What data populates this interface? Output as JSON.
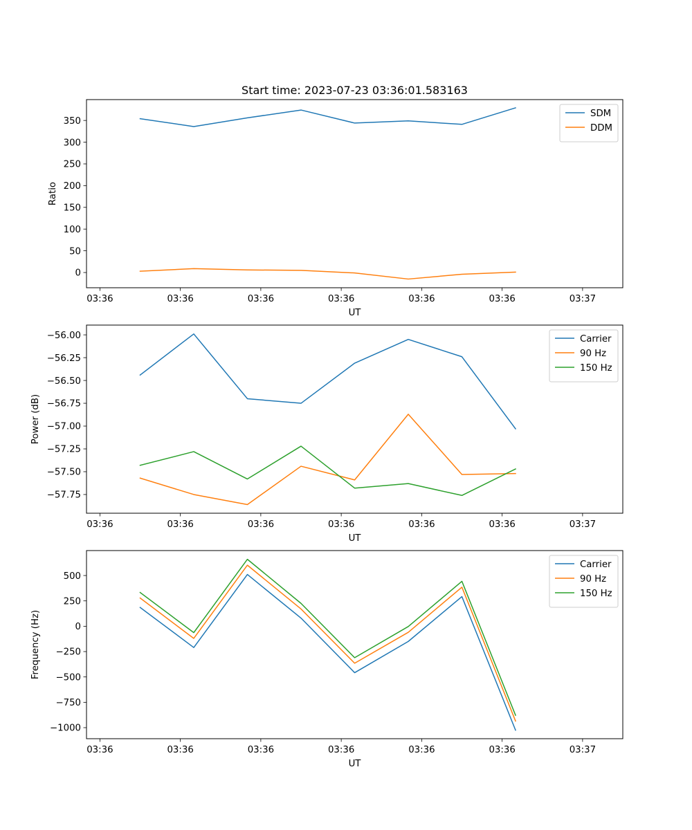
{
  "title": "Start time: 2023-07-23 03:36:01.583163",
  "colors": {
    "blue": "#1f77b4",
    "orange": "#ff7f0e",
    "green": "#2ca02c"
  },
  "chart_data": [
    {
      "type": "line",
      "xlabel": "UT",
      "ylabel": "Ratio",
      "x": [
        1,
        2,
        3,
        4,
        5,
        6,
        7,
        8
      ],
      "xlim": [
        0,
        10
      ],
      "x_ticks": [
        0.25,
        1.75,
        3.25,
        4.75,
        6.25,
        7.75,
        9.25
      ],
      "x_tick_labels": [
        "03:36",
        "03:36",
        "03:36",
        "03:36",
        "03:36",
        "03:36",
        "03:37"
      ],
      "ylim": [
        -35,
        398
      ],
      "y_ticks": [
        0,
        50,
        100,
        150,
        200,
        250,
        300,
        350
      ],
      "y_tick_labels": [
        "0",
        "50",
        "100",
        "150",
        "200",
        "250",
        "300",
        "350"
      ],
      "legend": "top-right",
      "series": [
        {
          "name": "SDM",
          "color": "#1f77b4",
          "values": [
            354,
            336,
            356,
            374,
            344,
            349,
            341,
            379
          ]
        },
        {
          "name": "DDM",
          "color": "#ff7f0e",
          "values": [
            3,
            9,
            6,
            5,
            -1,
            -15,
            -4,
            1
          ]
        }
      ]
    },
    {
      "type": "line",
      "xlabel": "UT",
      "ylabel": "Power (dB)",
      "x": [
        1,
        2,
        3,
        4,
        5,
        6,
        7,
        8
      ],
      "xlim": [
        0,
        10
      ],
      "x_ticks": [
        0.25,
        1.75,
        3.25,
        4.75,
        6.25,
        7.75,
        9.25
      ],
      "x_tick_labels": [
        "03:36",
        "03:36",
        "03:36",
        "03:36",
        "03:36",
        "03:36",
        "03:37"
      ],
      "ylim": [
        -57.955,
        -55.893
      ],
      "y_ticks": [
        -57.75,
        -57.5,
        -57.25,
        -57.0,
        -56.75,
        -56.5,
        -56.25,
        -56.0
      ],
      "y_tick_labels": [
        "−57.75",
        "−57.50",
        "−57.25",
        "−57.00",
        "−56.75",
        "−56.50",
        "−56.25",
        "−56.00"
      ],
      "legend": "top-right",
      "series": [
        {
          "name": "Carrier",
          "color": "#1f77b4",
          "values": [
            -56.44,
            -55.99,
            -56.7,
            -56.75,
            -56.31,
            -56.05,
            -56.24,
            -57.03
          ]
        },
        {
          "name": "90 Hz",
          "color": "#ff7f0e",
          "values": [
            -57.57,
            -57.75,
            -57.86,
            -57.44,
            -57.59,
            -56.87,
            -57.53,
            -57.52
          ]
        },
        {
          "name": "150 Hz",
          "color": "#2ca02c",
          "values": [
            -57.43,
            -57.28,
            -57.58,
            -57.22,
            -57.68,
            -57.63,
            -57.76,
            -57.47
          ]
        }
      ]
    },
    {
      "type": "line",
      "xlabel": "UT",
      "ylabel": "Frequency (Hz)",
      "x": [
        1,
        2,
        3,
        4,
        5,
        6,
        7,
        8
      ],
      "xlim": [
        0,
        10
      ],
      "x_ticks": [
        0.25,
        1.75,
        3.25,
        4.75,
        6.25,
        7.75,
        9.25
      ],
      "x_tick_labels": [
        "03:36",
        "03:36",
        "03:36",
        "03:36",
        "03:36",
        "03:36",
        "03:37"
      ],
      "ylim": [
        -1109,
        746
      ],
      "y_ticks": [
        -1000,
        -750,
        -500,
        -250,
        0,
        250,
        500
      ],
      "y_tick_labels": [
        "−1000",
        "−750",
        "−500",
        "−250",
        "0",
        "250",
        "500"
      ],
      "legend": "top-right",
      "series": [
        {
          "name": "Carrier",
          "color": "#1f77b4",
          "values": [
            185,
            -210,
            510,
            80,
            -458,
            -150,
            292,
            -1025
          ]
        },
        {
          "name": "90 Hz",
          "color": "#ff7f0e",
          "values": [
            278,
            -120,
            602,
            170,
            -365,
            -60,
            385,
            -935
          ]
        },
        {
          "name": "150 Hz",
          "color": "#2ca02c",
          "values": [
            333,
            -63,
            660,
            225,
            -310,
            -3,
            443,
            -878
          ]
        }
      ]
    }
  ]
}
